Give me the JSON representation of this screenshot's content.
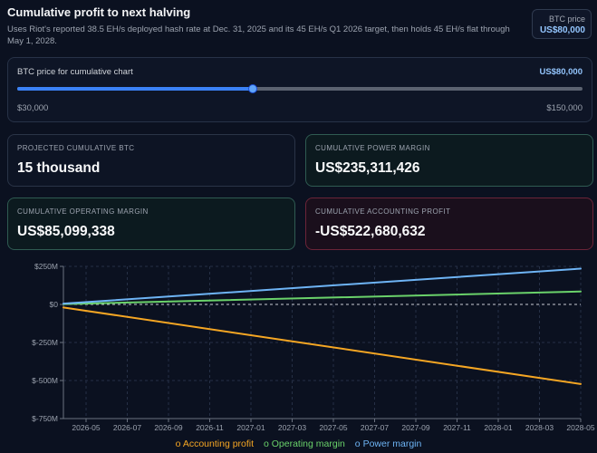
{
  "header": {
    "title": "Cumulative profit to next halving",
    "subtitle": "Uses Riot's reported 38.5 EH/s deployed hash rate at Dec. 31, 2025 and its 45 EH/s Q1 2026 target, then holds 45 EH/s flat through May 1, 2028."
  },
  "price_badge": {
    "label": "BTC price",
    "value": "US$80,000"
  },
  "slider": {
    "label": "BTC price for cumulative chart",
    "value_text": "US$80,000",
    "min_label": "$30,000",
    "max_label": "$150,000",
    "fraction": 0.4167
  },
  "cards": {
    "btc": {
      "label": "PROJECTED CUMULATIVE BTC",
      "value": "15 thousand"
    },
    "power": {
      "label": "CUMULATIVE POWER MARGIN",
      "value": "US$235,311,426"
    },
    "operating": {
      "label": "CUMULATIVE OPERATING MARGIN",
      "value": "US$85,099,338"
    },
    "accounting": {
      "label": "CUMULATIVE ACCOUNTING PROFIT",
      "value": "-US$522,680,632"
    }
  },
  "colors": {
    "accounting": "#f5a623",
    "operating": "#6ad26a",
    "power": "#6eb4f5",
    "accent": "#93c5fd"
  },
  "chart_data": {
    "type": "line",
    "xlabels": [
      "2026-05",
      "2026-07",
      "2026-09",
      "2026-11",
      "2027-01",
      "2027-03",
      "2027-05",
      "2027-07",
      "2027-09",
      "2027-11",
      "2028-01",
      "2028-03",
      "2028-05"
    ],
    "ylabels": [
      "$250M",
      "$0",
      "$-250M",
      "$-500M",
      "$-750M"
    ],
    "yticks": [
      250,
      0,
      -250,
      -500,
      -750
    ],
    "ylim": [
      -750,
      250
    ],
    "x": [
      "2026-04",
      "2028-05"
    ],
    "grid": true,
    "legend_position": "bottom",
    "series": [
      {
        "name": "Accounting profit",
        "color_key": "accounting",
        "values": [
          -20,
          -523
        ]
      },
      {
        "name": "Operating margin",
        "color_key": "operating",
        "values": [
          2,
          85
        ]
      },
      {
        "name": "Power margin",
        "color_key": "power",
        "values": [
          5,
          235
        ]
      }
    ]
  }
}
